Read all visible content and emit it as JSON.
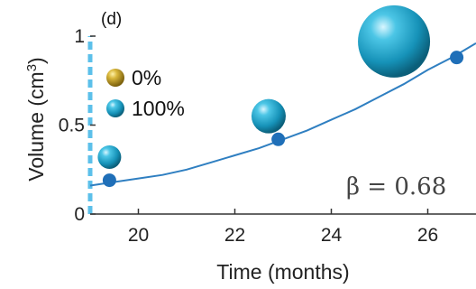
{
  "chart_data": {
    "type": "line",
    "panel_label": "(d)",
    "xlabel": "Time (months)",
    "ylabel_main": "Volume (cm",
    "ylabel_sup": "3",
    "ylabel_end": ")",
    "xlim": [
      19,
      27
    ],
    "ylim": [
      0,
      1
    ],
    "x_ticks": [
      20,
      22,
      24,
      26
    ],
    "y_ticks": [
      {
        "value": 0,
        "label": "0"
      },
      {
        "value": 0.5,
        "label": "0.5"
      },
      {
        "value": 1,
        "label": "1"
      }
    ],
    "points": {
      "name": "",
      "x": [
        19.4,
        22.9,
        26.6
      ],
      "y": [
        0.19,
        0.42,
        0.88
      ]
    },
    "fit_curve": {
      "x": [
        19.0,
        19.5,
        20.0,
        20.5,
        21.0,
        21.5,
        22.0,
        22.5,
        23.0,
        23.5,
        24.0,
        24.5,
        25.0,
        25.5,
        26.0,
        26.5,
        27.0
      ],
      "y": [
        0.16,
        0.18,
        0.2,
        0.22,
        0.25,
        0.29,
        0.33,
        0.37,
        0.42,
        0.47,
        0.53,
        0.59,
        0.66,
        0.73,
        0.81,
        0.88,
        0.96
      ]
    },
    "spheres": [
      {
        "x": 19.4,
        "y": 0.32,
        "size": "small"
      },
      {
        "x": 22.7,
        "y": 0.55,
        "size": "medium"
      },
      {
        "x": 25.3,
        "y": 0.97,
        "size": "large"
      }
    ],
    "legend": [
      {
        "label": "0%",
        "color": "#c9a227"
      },
      {
        "label": "100%",
        "color": "#1ea7c9"
      }
    ],
    "annotation": "β = 0.68",
    "colors": {
      "line": "#2f7fc1",
      "marker": "#1f6fb8",
      "sphere": "#1ea7c9",
      "sphere_dark": "#0b5f7a",
      "legend_gold": "#c9a227",
      "left_axis_dash": "#5cc0ea"
    }
  }
}
